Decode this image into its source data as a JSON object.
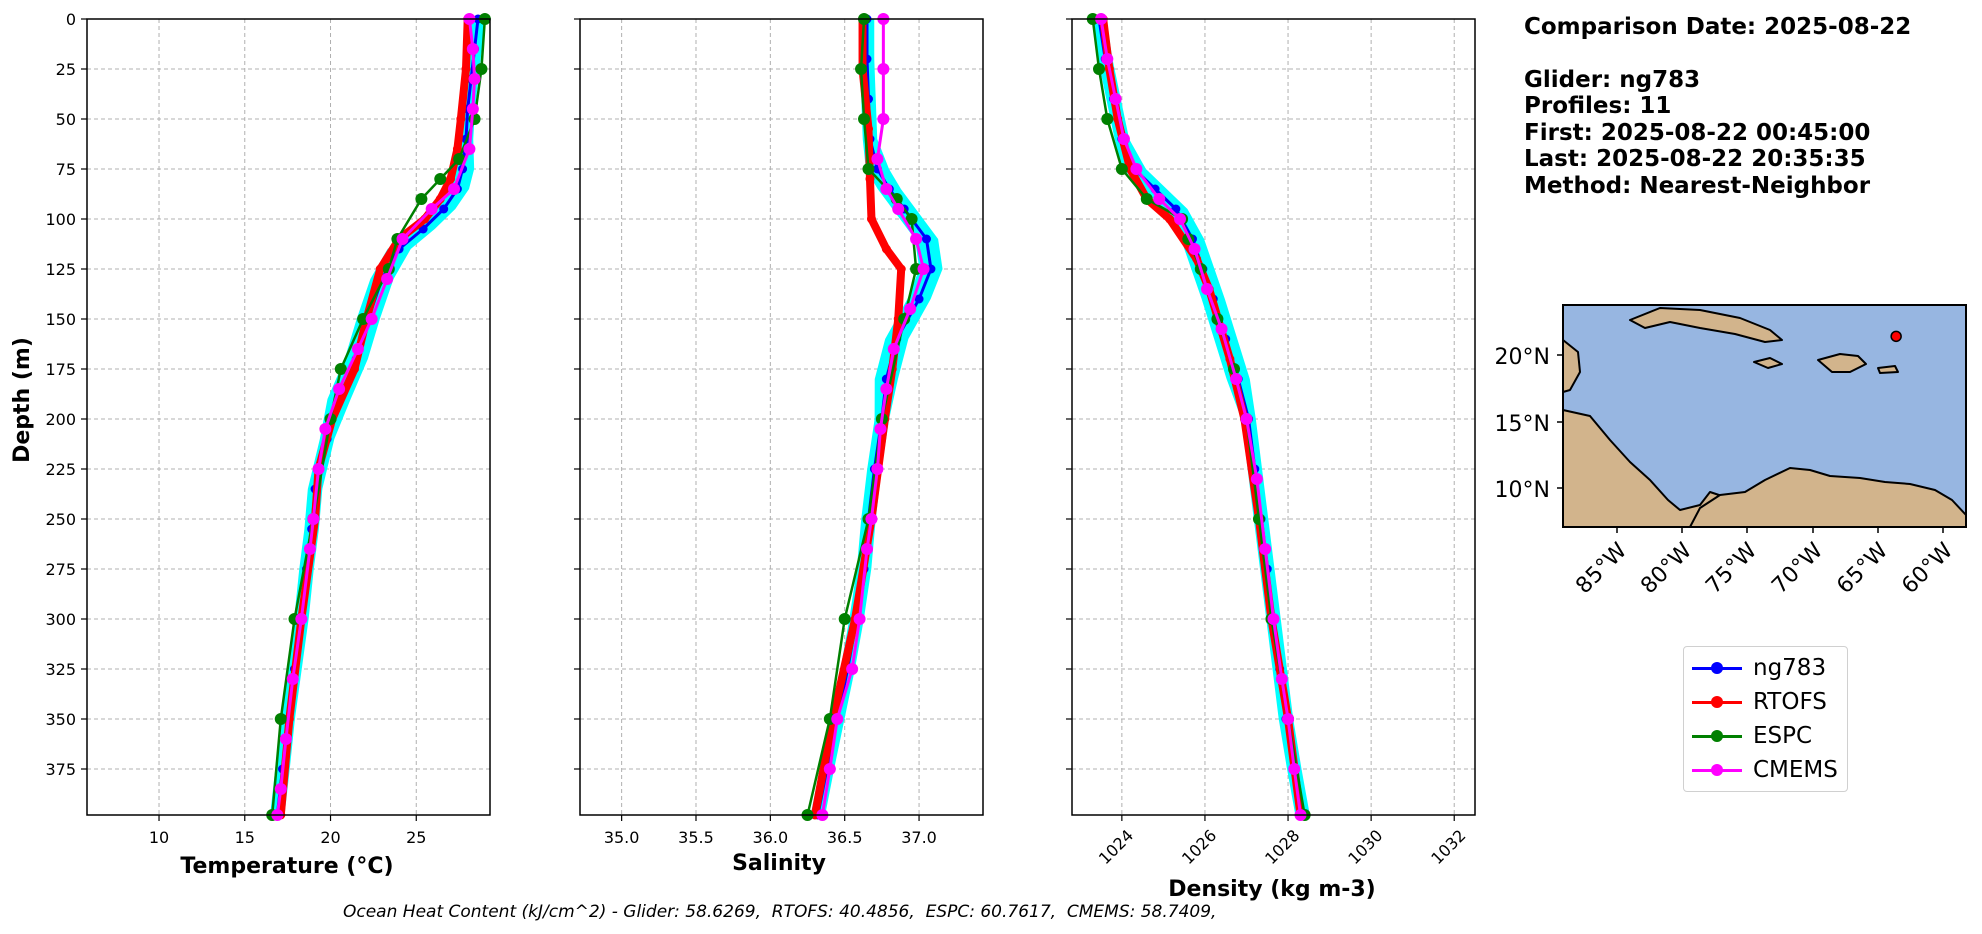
{
  "chart_data": [
    {
      "type": "line",
      "xlabel": "Temperature (°C)",
      "ylabel": "Depth (m)",
      "xlim": [
        5.8,
        29.3
      ],
      "ylim": [
        398,
        0
      ],
      "xticks": [
        10,
        15,
        20,
        25
      ],
      "yticks": [
        0,
        25,
        50,
        75,
        100,
        125,
        150,
        175,
        200,
        225,
        250,
        275,
        300,
        325,
        350,
        375
      ],
      "grid": true,
      "series": [
        {
          "name": "ng783",
          "color": "#0000ff",
          "points": [
            [
              28.6,
              0
            ],
            [
              28.4,
              15
            ],
            [
              28.2,
              30
            ],
            [
              28.0,
              45
            ],
            [
              27.9,
              60
            ],
            [
              27.7,
              75
            ],
            [
              27.4,
              85
            ],
            [
              26.6,
              95
            ],
            [
              25.4,
              105
            ],
            [
              24.0,
              115
            ],
            [
              23.0,
              130
            ],
            [
              22.2,
              150
            ],
            [
              21.5,
              170
            ],
            [
              20.5,
              190
            ],
            [
              19.8,
              210
            ],
            [
              19.1,
              235
            ],
            [
              18.9,
              255
            ],
            [
              18.6,
              275
            ],
            [
              18.3,
              300
            ],
            [
              17.9,
              325
            ],
            [
              17.5,
              350
            ],
            [
              17.2,
              375
            ],
            [
              16.9,
              398
            ]
          ]
        },
        {
          "name": "RTOFS",
          "color": "#ff0000",
          "points": [
            [
              28.0,
              0
            ],
            [
              27.9,
              25
            ],
            [
              27.6,
              50
            ],
            [
              27.4,
              65
            ],
            [
              27.0,
              80
            ],
            [
              26.4,
              90
            ],
            [
              25.5,
              100
            ],
            [
              24.0,
              110
            ],
            [
              22.9,
              125
            ],
            [
              22.1,
              150
            ],
            [
              21.4,
              175
            ],
            [
              20.1,
              200
            ],
            [
              19.3,
              225
            ],
            [
              19.1,
              250
            ],
            [
              18.3,
              300
            ],
            [
              17.6,
              350
            ],
            [
              17.1,
              398
            ]
          ]
        },
        {
          "name": "ESPC",
          "color": "#008000",
          "points": [
            [
              29.0,
              0
            ],
            [
              28.8,
              25
            ],
            [
              28.4,
              50
            ],
            [
              27.5,
              70
            ],
            [
              26.4,
              80
            ],
            [
              25.3,
              90
            ],
            [
              23.9,
              110
            ],
            [
              23.4,
              125
            ],
            [
              21.9,
              150
            ],
            [
              20.6,
              175
            ],
            [
              20.0,
              200
            ],
            [
              19.0,
              250
            ],
            [
              17.9,
              300
            ],
            [
              17.1,
              350
            ],
            [
              16.6,
              398
            ]
          ]
        },
        {
          "name": "CMEMS",
          "color": "#ff00ff",
          "points": [
            [
              28.1,
              0
            ],
            [
              28.3,
              15
            ],
            [
              28.4,
              30
            ],
            [
              28.3,
              45
            ],
            [
              28.1,
              65
            ],
            [
              27.2,
              85
            ],
            [
              25.9,
              95
            ],
            [
              24.2,
              110
            ],
            [
              23.3,
              130
            ],
            [
              22.4,
              150
            ],
            [
              21.6,
              165
            ],
            [
              20.5,
              185
            ],
            [
              19.7,
              205
            ],
            [
              19.3,
              225
            ],
            [
              19.0,
              250
            ],
            [
              18.8,
              265
            ],
            [
              18.3,
              300
            ],
            [
              17.8,
              330
            ],
            [
              17.4,
              360
            ],
            [
              17.1,
              385
            ],
            [
              16.9,
              398
            ]
          ]
        }
      ]
    },
    {
      "type": "line",
      "xlabel": "Salinity",
      "ylabel": "",
      "xlim": [
        34.72,
        37.43
      ],
      "ylim": [
        398,
        0
      ],
      "xticks": [
        "35.0",
        "35.5",
        "36.0",
        "36.5",
        "37.0"
      ],
      "grid": true,
      "series": [
        {
          "name": "ng783",
          "color": "#0000ff",
          "points": [
            [
              36.65,
              0
            ],
            [
              36.65,
              20
            ],
            [
              36.66,
              40
            ],
            [
              36.67,
              60
            ],
            [
              36.72,
              75
            ],
            [
              36.8,
              85
            ],
            [
              36.9,
              95
            ],
            [
              37.05,
              110
            ],
            [
              37.08,
              125
            ],
            [
              37.0,
              140
            ],
            [
              36.85,
              160
            ],
            [
              36.78,
              180
            ],
            [
              36.75,
              200
            ],
            [
              36.7,
              225
            ],
            [
              36.66,
              250
            ],
            [
              36.63,
              275
            ],
            [
              36.58,
              300
            ],
            [
              36.52,
              325
            ],
            [
              36.45,
              350
            ],
            [
              36.38,
              375
            ],
            [
              36.32,
              398
            ]
          ]
        },
        {
          "name": "RTOFS",
          "color": "#ff0000",
          "points": [
            [
              36.62,
              0
            ],
            [
              36.62,
              25
            ],
            [
              36.66,
              55
            ],
            [
              36.67,
              80
            ],
            [
              36.68,
              100
            ],
            [
              36.78,
              115
            ],
            [
              36.88,
              125
            ],
            [
              36.86,
              150
            ],
            [
              36.82,
              175
            ],
            [
              36.77,
              200
            ],
            [
              36.68,
              250
            ],
            [
              36.57,
              300
            ],
            [
              36.42,
              350
            ],
            [
              36.3,
              398
            ]
          ]
        },
        {
          "name": "ESPC",
          "color": "#008000",
          "points": [
            [
              36.63,
              0
            ],
            [
              36.61,
              25
            ],
            [
              36.63,
              50
            ],
            [
              36.66,
              75
            ],
            [
              36.85,
              90
            ],
            [
              36.95,
              100
            ],
            [
              36.98,
              125
            ],
            [
              36.9,
              150
            ],
            [
              36.75,
              200
            ],
            [
              36.66,
              250
            ],
            [
              36.5,
              300
            ],
            [
              36.4,
              350
            ],
            [
              36.25,
              398
            ]
          ]
        },
        {
          "name": "CMEMS",
          "color": "#ff00ff",
          "points": [
            [
              36.76,
              0
            ],
            [
              36.76,
              25
            ],
            [
              36.76,
              50
            ],
            [
              36.72,
              70
            ],
            [
              36.78,
              85
            ],
            [
              36.86,
              95
            ],
            [
              36.98,
              110
            ],
            [
              37.03,
              125
            ],
            [
              36.94,
              145
            ],
            [
              36.83,
              165
            ],
            [
              36.78,
              185
            ],
            [
              36.74,
              205
            ],
            [
              36.72,
              225
            ],
            [
              36.68,
              250
            ],
            [
              36.65,
              265
            ],
            [
              36.6,
              300
            ],
            [
              36.55,
              325
            ],
            [
              36.45,
              350
            ],
            [
              36.4,
              375
            ],
            [
              36.35,
              398
            ]
          ]
        }
      ]
    },
    {
      "type": "line",
      "xlabel": "Density (kg m-3)",
      "ylabel": "",
      "xlim": [
        1022.8,
        1032.5
      ],
      "ylim": [
        398,
        0
      ],
      "xticks": [
        "1024",
        "1026",
        "1028",
        "1030",
        "1032"
      ],
      "grid": true,
      "series": [
        {
          "name": "ng783",
          "color": "#0000ff",
          "points": [
            [
              1023.45,
              0
            ],
            [
              1023.6,
              20
            ],
            [
              1023.8,
              40
            ],
            [
              1024.0,
              60
            ],
            [
              1024.3,
              75
            ],
            [
              1024.8,
              85
            ],
            [
              1025.3,
              95
            ],
            [
              1025.7,
              110
            ],
            [
              1025.95,
              125
            ],
            [
              1026.2,
              140
            ],
            [
              1026.5,
              160
            ],
            [
              1026.8,
              180
            ],
            [
              1027.05,
              200
            ],
            [
              1027.2,
              225
            ],
            [
              1027.35,
              250
            ],
            [
              1027.5,
              275
            ],
            [
              1027.65,
              300
            ],
            [
              1027.8,
              325
            ],
            [
              1027.95,
              350
            ],
            [
              1028.15,
              375
            ],
            [
              1028.35,
              398
            ]
          ]
        },
        {
          "name": "RTOFS",
          "color": "#ff0000",
          "points": [
            [
              1023.55,
              0
            ],
            [
              1023.7,
              25
            ],
            [
              1023.9,
              50
            ],
            [
              1024.2,
              75
            ],
            [
              1024.6,
              90
            ],
            [
              1025.15,
              100
            ],
            [
              1025.8,
              120
            ],
            [
              1026.1,
              135
            ],
            [
              1026.6,
              170
            ],
            [
              1026.95,
              200
            ],
            [
              1027.3,
              250
            ],
            [
              1027.6,
              300
            ],
            [
              1028.0,
              350
            ],
            [
              1028.3,
              398
            ]
          ]
        },
        {
          "name": "ESPC",
          "color": "#008000",
          "points": [
            [
              1023.3,
              0
            ],
            [
              1023.45,
              25
            ],
            [
              1023.65,
              50
            ],
            [
              1024.0,
              75
            ],
            [
              1024.6,
              90
            ],
            [
              1025.45,
              100
            ],
            [
              1025.6,
              110
            ],
            [
              1025.9,
              125
            ],
            [
              1026.3,
              150
            ],
            [
              1026.7,
              175
            ],
            [
              1027.0,
              200
            ],
            [
              1027.3,
              250
            ],
            [
              1027.6,
              300
            ],
            [
              1028.0,
              350
            ],
            [
              1028.4,
              398
            ]
          ]
        },
        {
          "name": "CMEMS",
          "color": "#ff00ff",
          "points": [
            [
              1023.5,
              0
            ],
            [
              1023.65,
              20
            ],
            [
              1023.85,
              40
            ],
            [
              1024.05,
              60
            ],
            [
              1024.35,
              75
            ],
            [
              1024.9,
              90
            ],
            [
              1025.4,
              100
            ],
            [
              1025.75,
              115
            ],
            [
              1026.05,
              135
            ],
            [
              1026.4,
              155
            ],
            [
              1026.75,
              180
            ],
            [
              1027.0,
              200
            ],
            [
              1027.25,
              230
            ],
            [
              1027.45,
              265
            ],
            [
              1027.65,
              300
            ],
            [
              1027.85,
              330
            ],
            [
              1028.0,
              350
            ],
            [
              1028.15,
              375
            ],
            [
              1028.3,
              398
            ]
          ]
        }
      ]
    },
    {
      "type": "map",
      "lat_ticks": [
        "20°N",
        "15°N",
        "10°N"
      ],
      "lon_ticks": [
        "85°W",
        "80°W",
        "75°W",
        "70°W",
        "65°W",
        "60°W"
      ],
      "extent_lon": [
        -89,
        -59
      ],
      "extent_lat": [
        7,
        24
      ],
      "glider_position": {
        "lon": -64.2,
        "lat": 21.6
      },
      "ocean_color": "#97b6e1",
      "land_color": "#d2b48c"
    }
  ],
  "info": {
    "comparison_date": "Comparison Date: 2025-08-22",
    "glider": "Glider: ng783",
    "profiles": "Profiles: 11",
    "first": "First: 2025-08-22 00:45:00",
    "last": "Last: 2025-08-22 20:35:35",
    "method": "Method: Nearest-Neighbor"
  },
  "legend": {
    "items": [
      {
        "label": "ng783",
        "color": "#0000ff"
      },
      {
        "label": "RTOFS",
        "color": "#ff0000"
      },
      {
        "label": "ESPC",
        "color": "#008000"
      },
      {
        "label": "CMEMS",
        "color": "#ff00ff"
      }
    ]
  },
  "caption": "Ocean Heat Content (kJ/cm^2) - Glider: 58.6269,  RTOFS: 40.4856,  ESPC: 60.7617,  CMEMS: 58.7409,",
  "colors": {
    "ng783": "#0000ff",
    "RTOFS": "#ff0000",
    "ESPC": "#008000",
    "CMEMS": "#ff00ff",
    "envelope": "#00ffff"
  }
}
